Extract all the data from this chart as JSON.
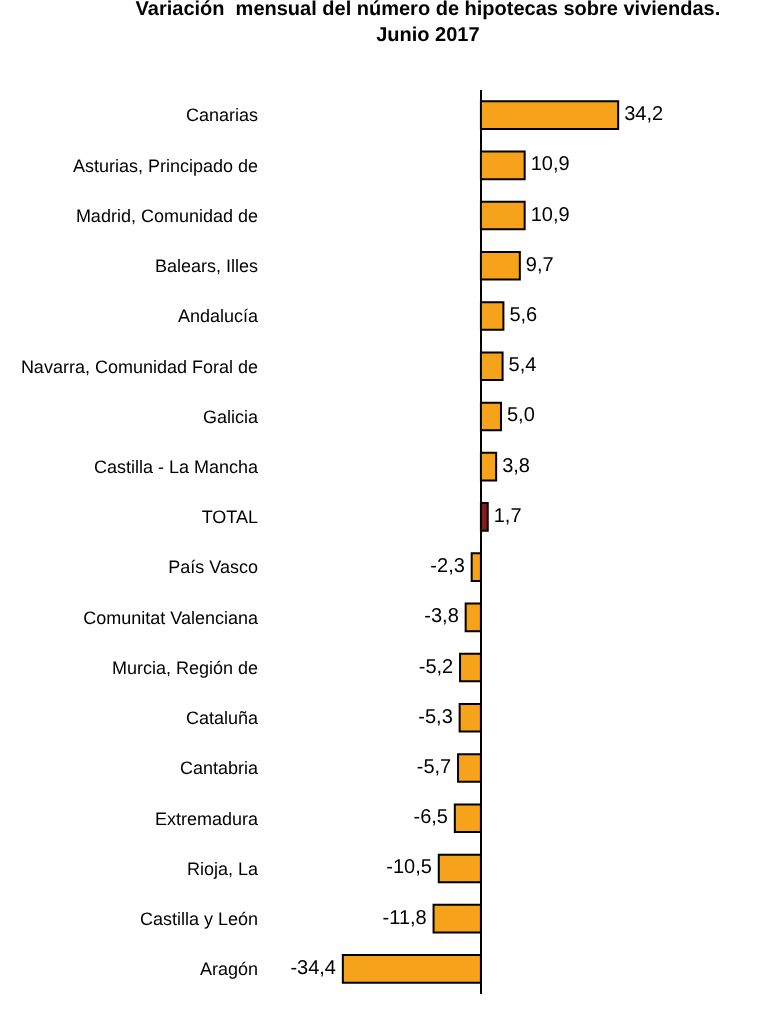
{
  "chart_data": {
    "type": "bar",
    "orientation": "horizontal",
    "title": "Variación  mensual del número de hipotecas sobre viviendas.\nJunio 2017",
    "categories": [
      "Canarias",
      "Asturias, Principado de",
      "Madrid, Comunidad de",
      "Balears, Illes",
      "Andalucía",
      "Navarra, Comunidad Foral de",
      "Galicia",
      "Castilla - La Mancha",
      "TOTAL",
      "País Vasco",
      "Comunitat Valenciana",
      "Murcia, Región de",
      "Cataluña",
      "Cantabria",
      "Extremadura",
      "Rioja, La",
      "Castilla y León",
      "Aragón"
    ],
    "values": [
      34.2,
      10.9,
      10.9,
      9.7,
      5.6,
      5.4,
      5.0,
      3.8,
      1.7,
      -2.3,
      -3.8,
      -5.2,
      -5.3,
      -5.7,
      -6.5,
      -10.5,
      -11.8,
      -34.4
    ],
    "value_labels": [
      "34,2",
      "10,9",
      "10,9",
      "9,7",
      "5,6",
      "5,4",
      "5,0",
      "3,8",
      "1,7",
      "-2,3",
      "-3,8",
      "-5,2",
      "-5,3",
      "-5,7",
      "-6,5",
      "-10,5",
      "-11,8",
      "-34,4"
    ],
    "colors": [
      "#f7a21b",
      "#f7a21b",
      "#f7a21b",
      "#f7a21b",
      "#f7a21b",
      "#f7a21b",
      "#f7a21b",
      "#f7a21b",
      "#8b1a1a",
      "#f7a21b",
      "#f7a21b",
      "#f7a21b",
      "#f7a21b",
      "#f7a21b",
      "#f7a21b",
      "#f7a21b",
      "#f7a21b",
      "#f7a21b"
    ],
    "tick_labels": "y"
  }
}
